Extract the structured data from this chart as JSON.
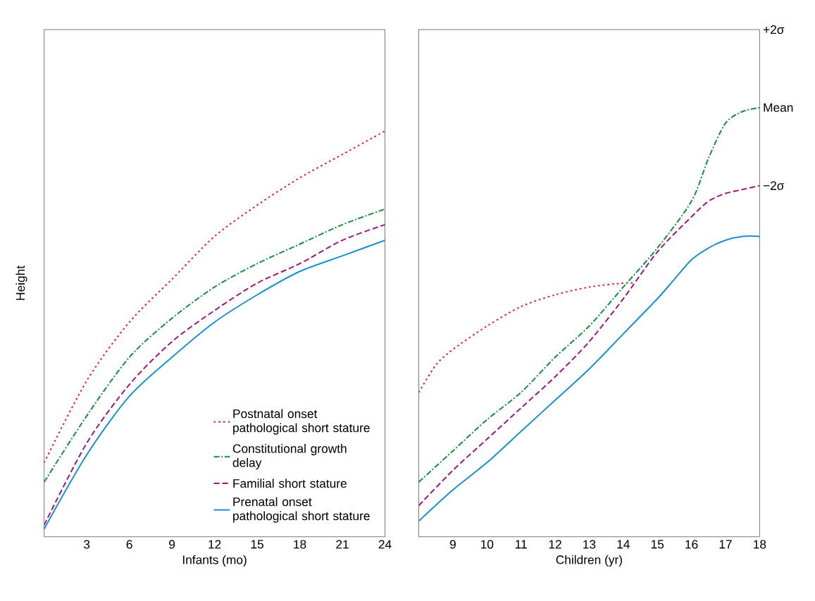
{
  "chart_data": [
    {
      "type": "line",
      "ylabel": "Height",
      "xlabel": "Infants (mo)",
      "xlim": [
        0,
        24
      ],
      "xticks": [
        3,
        6,
        9,
        12,
        15,
        18,
        21,
        24
      ],
      "ylim": [
        -11,
        2
      ],
      "tick_labels": "x",
      "legend": "bottom right",
      "x": [
        0,
        3,
        6,
        9,
        12,
        15,
        18,
        21,
        24
      ],
      "series": [
        {
          "name": "Postnatal onset pathological short stature",
          "color": "#e8202a",
          "line_style": "dotted",
          "values": [
            -9.1,
            -7.0,
            -5.5,
            -4.4,
            -3.3,
            -2.5,
            -1.8,
            -1.2,
            -0.6
          ]
        },
        {
          "name": "Constitutional growth delay",
          "color": "#169040",
          "line_style": "dashdot",
          "values": [
            -9.6,
            -7.9,
            -6.4,
            -5.4,
            -4.6,
            -4.0,
            -3.5,
            -3.0,
            -2.6
          ]
        },
        {
          "name": "Familial short stature",
          "color": "#a0167e",
          "line_style": "dashed",
          "values": [
            -10.7,
            -8.6,
            -7.1,
            -6.0,
            -5.2,
            -4.5,
            -4.0,
            -3.4,
            -3.0
          ]
        },
        {
          "name": "Prenatal onset pathological short stature",
          "color": "#1a8fd8",
          "line_style": "solid",
          "values": [
            -10.8,
            -8.9,
            -7.4,
            -6.4,
            -5.5,
            -4.8,
            -4.2,
            -3.8,
            -3.4
          ]
        }
      ]
    },
    {
      "type": "line",
      "xlabel": "Children (yr)",
      "xlim": [
        8,
        18
      ],
      "xticks": [
        9,
        10,
        11,
        12,
        13,
        14,
        15,
        16,
        17,
        18
      ],
      "ylim": [
        -11,
        2
      ],
      "yticks": [
        {
          "value": 2,
          "label": "+2σ"
        },
        {
          "value": 0,
          "label": "Mean"
        },
        {
          "value": -2,
          "label": "−2σ"
        }
      ],
      "series": [
        {
          "color": "#e8202a",
          "line_style": "dotted",
          "x": [
            8,
            8.5,
            9,
            10,
            11,
            12,
            13,
            14,
            14.3
          ],
          "values": [
            -7.3,
            -6.6,
            -6.2,
            -5.6,
            -5.1,
            -4.8,
            -4.6,
            -4.5,
            -4.5
          ]
        },
        {
          "color": "#169040",
          "line_style": "dashdot",
          "x": [
            8,
            9,
            10,
            11,
            12,
            13,
            14,
            15,
            16,
            16.5,
            17,
            17.5,
            18
          ],
          "values": [
            -9.6,
            -8.8,
            -8.0,
            -7.3,
            -6.4,
            -5.6,
            -4.6,
            -3.6,
            -2.4,
            -1.3,
            -0.4,
            -0.1,
            0
          ]
        },
        {
          "color": "#a0167e",
          "line_style": "dashed",
          "x": [
            8,
            9,
            10,
            11,
            12,
            13,
            14,
            15,
            16,
            16.5,
            17,
            17.5,
            18
          ],
          "values": [
            -10.2,
            -9.3,
            -8.5,
            -7.7,
            -6.9,
            -6.0,
            -4.9,
            -3.7,
            -2.8,
            -2.4,
            -2.2,
            -2.1,
            -2.0
          ]
        },
        {
          "color": "#1a8fd8",
          "line_style": "solid",
          "x": [
            8,
            9,
            10,
            11,
            12,
            13,
            14,
            15,
            15.5,
            16,
            16.5,
            17,
            17.5,
            18
          ],
          "values": [
            -10.6,
            -9.8,
            -9.1,
            -8.3,
            -7.5,
            -6.7,
            -5.8,
            -4.9,
            -4.4,
            -3.9,
            -3.6,
            -3.4,
            -3.3,
            -3.3
          ]
        }
      ]
    }
  ]
}
